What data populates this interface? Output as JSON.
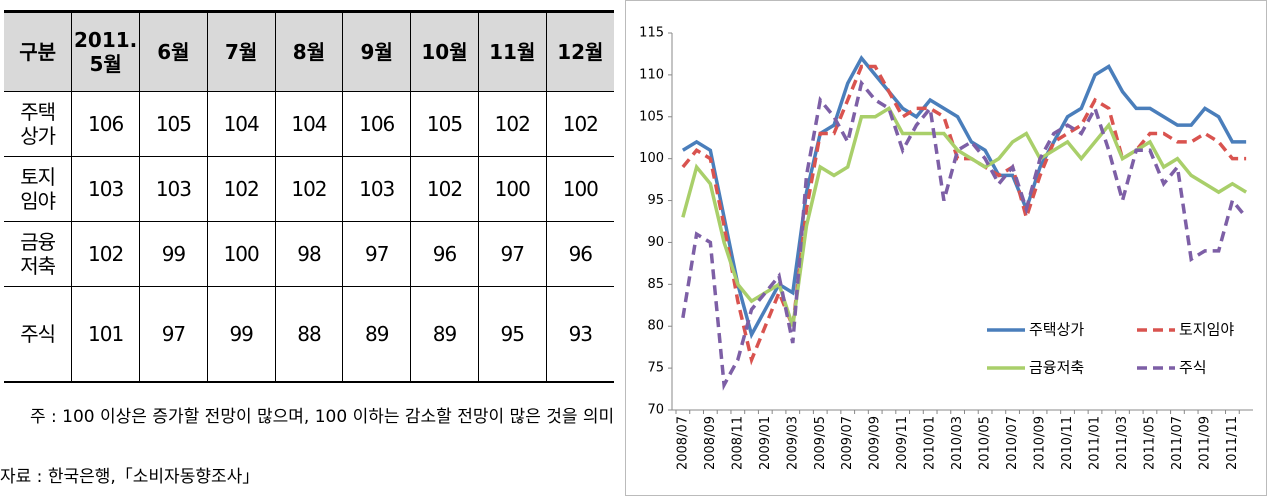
{
  "table": {
    "header": [
      "구분",
      "2011.\n5월",
      "6월",
      "7월",
      "8월",
      "9월",
      "10월",
      "11월",
      "12월"
    ],
    "rows": [
      [
        "주택\n상가",
        "106",
        "105",
        "104",
        "104",
        "106",
        "105",
        "102",
        "102"
      ],
      [
        "토지\n임야",
        "103",
        "103",
        "102",
        "102",
        "103",
        "102",
        "100",
        "100"
      ],
      [
        "금융\n저축",
        "102",
        "99",
        "100",
        "98",
        "97",
        "96",
        "97",
        "96"
      ],
      [
        "주식",
        "101",
        "97",
        "99",
        "88",
        "89",
        "89",
        "95",
        "93"
      ]
    ]
  },
  "notes": [
    "주 : 100 이상은 증가할 전망이 많으며, 100 이하는 감소할 전망이 많은 것을 의미",
    "자료 : 한국은행,「소비자동향조사」"
  ],
  "chart_data": {
    "type": "line",
    "categories": [
      "2008/07",
      null,
      "2008/09",
      null,
      "2008/11",
      null,
      "2009/01",
      null,
      "2009/03",
      null,
      "2009/05",
      null,
      "2009/07",
      null,
      "2009/09",
      null,
      "2009/11",
      null,
      "2010/01",
      null,
      "2010/03",
      null,
      "2010/05",
      null,
      "2010/07",
      null,
      "2010/09",
      null,
      "2010/11",
      null,
      "2011/01",
      null,
      "2011/03",
      null,
      "2011/05",
      null,
      "2011/07",
      null,
      "2011/09",
      null,
      "2011/11",
      null
    ],
    "series": [
      {
        "name": "주택상가",
        "color": "#4a7ebb",
        "style": "solid",
        "values": [
          101,
          102,
          101,
          93,
          85,
          79,
          82,
          85,
          84,
          96,
          103,
          104,
          109,
          112,
          110,
          108,
          106,
          105,
          107,
          106,
          105,
          102,
          101,
          98,
          98,
          94,
          99,
          102,
          105,
          106,
          110,
          111,
          108,
          106,
          106,
          105,
          104,
          104,
          106,
          105,
          102,
          102
        ]
      },
      {
        "name": "토지임야",
        "color": "#d9534f",
        "style": "dashed",
        "values": [
          99,
          101,
          100,
          92,
          83,
          76,
          80,
          84,
          80,
          94,
          103,
          103,
          107,
          111,
          111,
          108,
          105,
          106,
          106,
          105,
          100,
          100,
          99,
          98,
          99,
          93,
          98,
          102,
          103,
          104,
          107,
          106,
          100,
          101,
          103,
          103,
          102,
          102,
          103,
          102,
          100,
          100
        ]
      },
      {
        "name": "금융저축",
        "color": "#a9cf6a",
        "style": "solid",
        "values": [
          93,
          99,
          97,
          90,
          85,
          83,
          84,
          85,
          80,
          92,
          99,
          98,
          99,
          105,
          105,
          106,
          103,
          103,
          103,
          103,
          101,
          100,
          99,
          100,
          102,
          103,
          100,
          101,
          102,
          100,
          102,
          104,
          100,
          101,
          102,
          99,
          100,
          98,
          97,
          96,
          97,
          96
        ]
      },
      {
        "name": "주식",
        "color": "#7d5fa6",
        "style": "dashed",
        "values": [
          81,
          91,
          90,
          73,
          76,
          82,
          84,
          86,
          78,
          98,
          107,
          105,
          102,
          109,
          107,
          106,
          101,
          104,
          106,
          95,
          101,
          102,
          100,
          97,
          99,
          94,
          100,
          103,
          104,
          103,
          106,
          101,
          95,
          101,
          101,
          97,
          99,
          88,
          89,
          89,
          95,
          93
        ]
      }
    ],
    "ylim": [
      70,
      115
    ],
    "yticks": [
      70,
      75,
      80,
      85,
      90,
      95,
      100,
      105,
      110,
      115
    ],
    "legend": "lower right"
  }
}
